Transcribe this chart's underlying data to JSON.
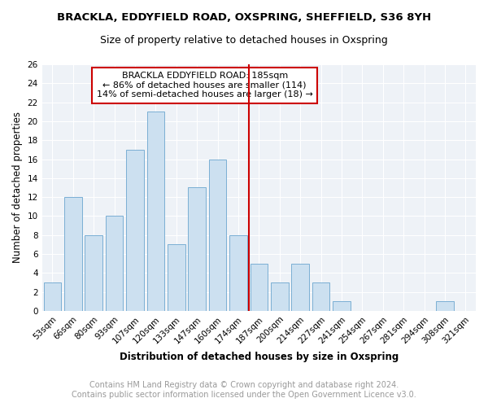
{
  "title": "BRACKLA, EDDYFIELD ROAD, OXSPRING, SHEFFIELD, S36 8YH",
  "subtitle": "Size of property relative to detached houses in Oxspring",
  "xlabel": "Distribution of detached houses by size in Oxspring",
  "ylabel": "Number of detached properties",
  "categories": [
    "53sqm",
    "66sqm",
    "80sqm",
    "93sqm",
    "107sqm",
    "120sqm",
    "133sqm",
    "147sqm",
    "160sqm",
    "174sqm",
    "187sqm",
    "200sqm",
    "214sqm",
    "227sqm",
    "241sqm",
    "254sqm",
    "267sqm",
    "281sqm",
    "294sqm",
    "308sqm",
    "321sqm"
  ],
  "values": [
    3,
    12,
    8,
    10,
    17,
    21,
    7,
    13,
    16,
    8,
    5,
    3,
    5,
    3,
    1,
    0,
    0,
    0,
    0,
    1,
    0
  ],
  "bar_color": "#cce0f0",
  "bar_edge_color": "#7aafd4",
  "vline_color": "#cc0000",
  "annotation_text": "BRACKLA EDDYFIELD ROAD: 185sqm\n← 86% of detached houses are smaller (114)\n14% of semi-detached houses are larger (18) →",
  "annotation_box_color": "#cc0000",
  "ylim": [
    0,
    26
  ],
  "yticks": [
    0,
    2,
    4,
    6,
    8,
    10,
    12,
    14,
    16,
    18,
    20,
    22,
    24,
    26
  ],
  "footer_text": "Contains HM Land Registry data © Crown copyright and database right 2024.\nContains public sector information licensed under the Open Government Licence v3.0.",
  "bg_color": "#eef2f7",
  "grid_color": "#ffffff",
  "title_fontsize": 9.5,
  "subtitle_fontsize": 9,
  "axis_label_fontsize": 8.5,
  "tick_fontsize": 7.5,
  "footer_fontsize": 7,
  "annot_fontsize": 8
}
